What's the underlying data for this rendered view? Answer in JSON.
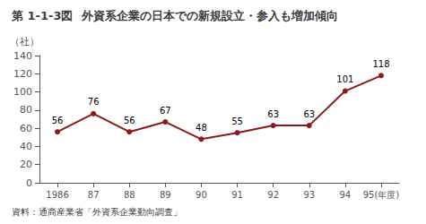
{
  "chart_data": {
    "type": "line",
    "title": "第 1-1-3図  外資系企業の日本での新規設立・参入も増加傾向",
    "ylabel": "（社）",
    "source": "資料：通商産業省「外資系企業動向調査」",
    "categories": [
      "1986",
      "87",
      "88",
      "89",
      "90",
      "91",
      "92",
      "93",
      "94",
      "95(年度)"
    ],
    "values": [
      56,
      76,
      56,
      67,
      48,
      55,
      63,
      63,
      101,
      118
    ],
    "color": "#8B1A1A",
    "marker": "circle",
    "ylim": [
      0,
      140
    ],
    "yticks": [
      0,
      20,
      40,
      60,
      80,
      100,
      120,
      140
    ],
    "grid": false,
    "data_labels": true
  }
}
